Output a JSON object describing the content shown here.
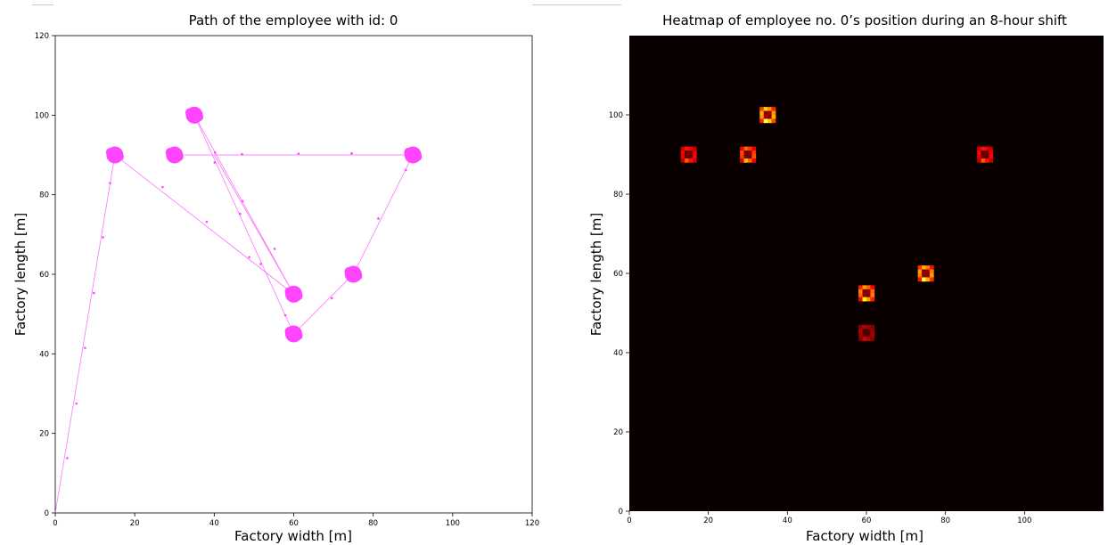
{
  "chart_data": [
    {
      "type": "scatter",
      "title": "Path of the employee with id: 0",
      "xlabel": "Factory width [m]",
      "ylabel": "Factory length [m]",
      "xlim": [
        0,
        120
      ],
      "ylim": [
        0,
        120
      ],
      "x_ticks": [
        0,
        20,
        40,
        60,
        80,
        100,
        120
      ],
      "y_ticks": [
        0,
        20,
        40,
        60,
        80,
        100,
        120
      ],
      "grid": false,
      "color": "#ff44ff",
      "path": [
        [
          0,
          0
        ],
        [
          15,
          90
        ],
        [
          60,
          55
        ],
        [
          35,
          100
        ],
        [
          60,
          45
        ],
        [
          75,
          60
        ],
        [
          90,
          90
        ],
        [
          30,
          90
        ],
        [
          40,
          90
        ],
        [
          60,
          55
        ]
      ],
      "path_points": [
        [
          3,
          13.8
        ],
        [
          5.3,
          27.5
        ],
        [
          7.5,
          41.5
        ],
        [
          9.7,
          55.3
        ],
        [
          12,
          69.3
        ],
        [
          13.8,
          82.9
        ],
        [
          27,
          81.9
        ],
        [
          38.1,
          73.2
        ],
        [
          48.8,
          64.3
        ],
        [
          51.7,
          62.6
        ],
        [
          55.2,
          66.4
        ],
        [
          47.1,
          78.4
        ],
        [
          40.1,
          88.1
        ],
        [
          46.5,
          75.2
        ],
        [
          57.9,
          49.7
        ],
        [
          69.6,
          54
        ],
        [
          81.3,
          74
        ],
        [
          88.2,
          86.2
        ],
        [
          30.7,
          90
        ],
        [
          47,
          90.2
        ],
        [
          61.2,
          90.3
        ],
        [
          74.6,
          90.4
        ],
        [
          40.2,
          90.6
        ]
      ],
      "dwell_points": [
        {
          "x": 15,
          "y": 90
        },
        {
          "x": 30,
          "y": 90
        },
        {
          "x": 35,
          "y": 100
        },
        {
          "x": 90,
          "y": 90
        },
        {
          "x": 60,
          "y": 55
        },
        {
          "x": 75,
          "y": 60
        },
        {
          "x": 60,
          "y": 45
        }
      ]
    },
    {
      "type": "heatmap",
      "title": "Heatmap of employee no. 0’s position during an 8-hour shift",
      "xlabel": "Factory width [m]",
      "ylabel": "Factory length [m]",
      "xlim": [
        0,
        120
      ],
      "ylim": [
        0,
        120
      ],
      "x_ticks": [
        0,
        20,
        40,
        60,
        80,
        100
      ],
      "y_ticks": [
        0,
        20,
        40,
        60,
        80,
        100
      ],
      "colormap": "hot",
      "background": "#0a0000",
      "hotspots": [
        {
          "x": 15,
          "y": 90,
          "intensity": 0.5
        },
        {
          "x": 30,
          "y": 90,
          "intensity": 0.65
        },
        {
          "x": 35,
          "y": 100,
          "intensity": 0.85
        },
        {
          "x": 90,
          "y": 90,
          "intensity": 0.5
        },
        {
          "x": 60,
          "y": 55,
          "intensity": 0.75
        },
        {
          "x": 75,
          "y": 60,
          "intensity": 0.8
        },
        {
          "x": 60,
          "y": 45,
          "intensity": 0.3
        }
      ]
    }
  ]
}
